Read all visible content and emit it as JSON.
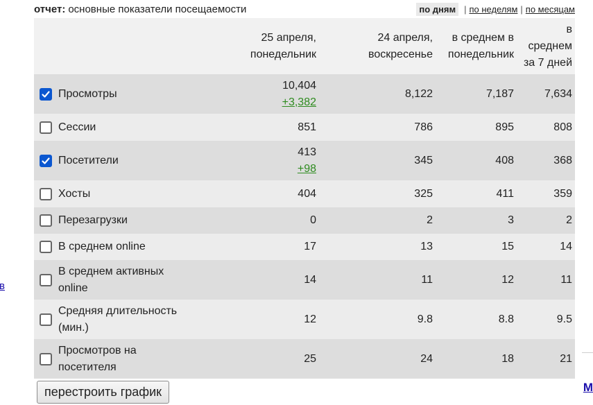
{
  "header": {
    "report_label": "отчет:",
    "report_title": "основные показатели посещаемости",
    "period_active": "по дням",
    "period_links": [
      "по неделям",
      "по месяцам"
    ]
  },
  "table": {
    "columns": [
      "",
      "25 апреля, понедельник",
      "24 апреля, воскресенье",
      "в среднем в понедельник",
      "в среднем за 7 дней"
    ],
    "rows": [
      {
        "metric": "Просмотры",
        "checked": true,
        "values": [
          "10,404",
          "8,122",
          "7,187",
          "7,634"
        ],
        "delta": "+3,382"
      },
      {
        "metric": "Сессии",
        "checked": false,
        "values": [
          "851",
          "786",
          "895",
          "808"
        ],
        "delta": ""
      },
      {
        "metric": "Посетители",
        "checked": true,
        "values": [
          "413",
          "345",
          "408",
          "368"
        ],
        "delta": "+98"
      },
      {
        "metric": "Хосты",
        "checked": false,
        "values": [
          "404",
          "325",
          "411",
          "359"
        ],
        "delta": ""
      },
      {
        "metric": "Перезагрузки",
        "checked": false,
        "values": [
          "0",
          "2",
          "3",
          "2"
        ],
        "delta": ""
      },
      {
        "metric": "В среднем online",
        "checked": false,
        "values": [
          "17",
          "13",
          "15",
          "14"
        ],
        "delta": ""
      },
      {
        "metric": "В среднем активных online",
        "checked": false,
        "values": [
          "14",
          "11",
          "12",
          "11"
        ],
        "delta": ""
      },
      {
        "metric": "Средняя длительность (мин.)",
        "checked": false,
        "values": [
          "12",
          "9.8",
          "8.8",
          "9.5"
        ],
        "delta": ""
      },
      {
        "metric": "Просмотров на посетителя",
        "checked": false,
        "values": [
          "25",
          "24",
          "18",
          "21"
        ],
        "delta": ""
      }
    ]
  },
  "button": {
    "label": "перестроить график"
  },
  "edges": {
    "left_text": "в",
    "right_text": "М"
  },
  "colors": {
    "accent": "#0b57d0",
    "delta": "#2e8b1f",
    "row_dark": "#dddddd",
    "row_light": "#ececec",
    "header_bg": "#f1f1f1"
  },
  "icons": {
    "checkbox": "checkbox-icon"
  }
}
